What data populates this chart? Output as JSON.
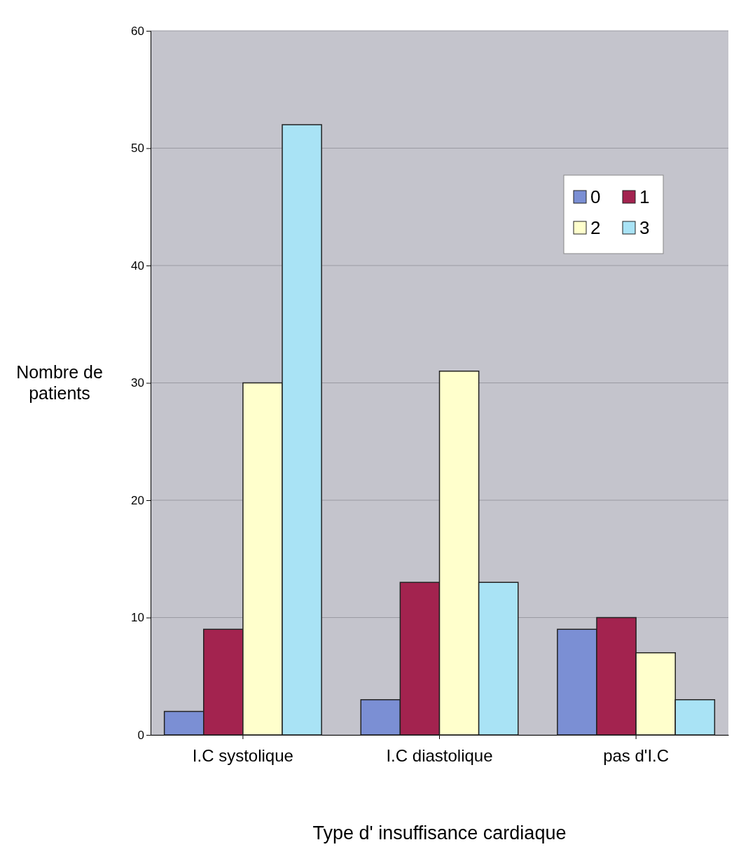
{
  "chart_data": {
    "type": "bar",
    "xlabel": "Type d' insuffisance cardiaque",
    "ylabel": "Nombre de patients",
    "categories": [
      "I.C systolique",
      "I.C diastolique",
      "pas d'I.C"
    ],
    "series": [
      {
        "name": "0",
        "color": "#7b8fd4",
        "values": [
          2,
          3,
          9
        ]
      },
      {
        "name": "1",
        "color": "#a3234f",
        "values": [
          9,
          13,
          10
        ]
      },
      {
        "name": "2",
        "color": "#ffffcc",
        "values": [
          30,
          31,
          7
        ]
      },
      {
        "name": "3",
        "color": "#a9e3f5",
        "values": [
          52,
          13,
          3
        ]
      }
    ],
    "ylim": [
      0,
      60
    ],
    "yticks": [
      0,
      10,
      20,
      30,
      40,
      50,
      60
    ],
    "grid": "y",
    "legend": "top right"
  }
}
